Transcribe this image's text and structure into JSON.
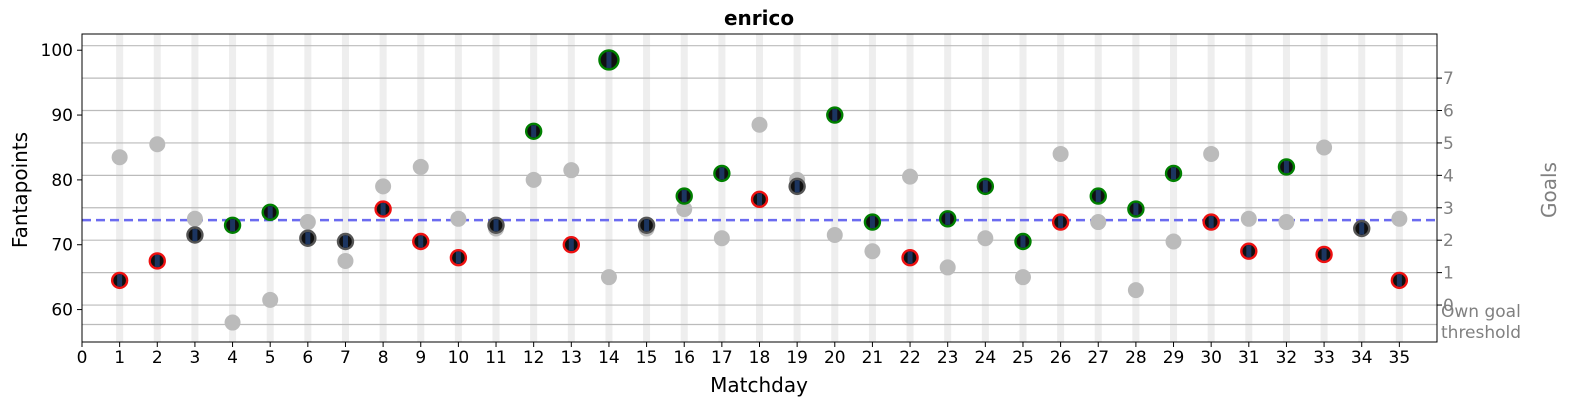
{
  "chart_data": {
    "type": "scatter",
    "title": "enrico",
    "xlabel": "Matchday",
    "ylabel": "Fantapoints",
    "y2label": "Goals",
    "xlim": [
      0,
      36
    ],
    "ylim": [
      55,
      102.5
    ],
    "xticks": [
      "0",
      "1",
      "2",
      "3",
      "4",
      "5",
      "6",
      "7",
      "8",
      "9",
      "10",
      "11",
      "12",
      "13",
      "14",
      "15",
      "16",
      "17",
      "18",
      "19",
      "20",
      "21",
      "22",
      "23",
      "24",
      "25",
      "26",
      "27",
      "28",
      "29",
      "30",
      "31",
      "32",
      "33",
      "34",
      "35"
    ],
    "yticks": [
      "60",
      "70",
      "80",
      "90",
      "100"
    ],
    "goal_lines": [
      {
        "value": 57.7,
        "label": ""
      },
      {
        "value": 60.7,
        "label": "0"
      },
      {
        "value": 65.7,
        "label": "1"
      },
      {
        "value": 70.7,
        "label": "2"
      },
      {
        "value": 75.7,
        "label": "3"
      },
      {
        "value": 80.7,
        "label": "4"
      },
      {
        "value": 85.7,
        "label": "5"
      },
      {
        "value": 90.7,
        "label": "6"
      },
      {
        "value": 95.7,
        "label": "7"
      },
      {
        "value": 100.7,
        "label": ""
      }
    ],
    "own_goal_label": [
      "Own goal",
      "threshold"
    ],
    "threshold": 73.8,
    "colors": {
      "green": "#008000",
      "red": "#ee1111",
      "gray": "#555555",
      "reference": "#bbbbbb",
      "threshold": "#6b6bf0",
      "goal_axis": "#808080",
      "stripe": "#eeeeee"
    },
    "series": [
      {
        "matchday": 1,
        "value": 64.5,
        "result": "red",
        "reference": 83.5
      },
      {
        "matchday": 2,
        "value": 67.5,
        "result": "red",
        "reference": 85.5
      },
      {
        "matchday": 3,
        "value": 71.5,
        "result": "gray",
        "reference": 74
      },
      {
        "matchday": 4,
        "value": 73,
        "result": "green",
        "reference": 58
      },
      {
        "matchday": 5,
        "value": 75,
        "result": "green",
        "reference": 61.5
      },
      {
        "matchday": 6,
        "value": 71,
        "result": "gray",
        "reference": 73.5
      },
      {
        "matchday": 7,
        "value": 70.5,
        "result": "gray",
        "reference": 67.5
      },
      {
        "matchday": 8,
        "value": 75.5,
        "result": "red",
        "reference": 79
      },
      {
        "matchday": 9,
        "value": 70.5,
        "result": "red",
        "reference": 82
      },
      {
        "matchday": 10,
        "value": 68,
        "result": "red",
        "reference": 74
      },
      {
        "matchday": 11,
        "value": 73,
        "result": "gray",
        "reference": 72.5
      },
      {
        "matchday": 12,
        "value": 87.5,
        "result": "green",
        "reference": 80
      },
      {
        "matchday": 13,
        "value": 70,
        "result": "red",
        "reference": 81.5
      },
      {
        "matchday": 14,
        "value": 98.5,
        "result": "green",
        "reference": 65
      },
      {
        "matchday": 15,
        "value": 73,
        "result": "gray",
        "reference": 72.5
      },
      {
        "matchday": 16,
        "value": 77.5,
        "result": "green",
        "reference": 75.5
      },
      {
        "matchday": 17,
        "value": 81,
        "result": "green",
        "reference": 71
      },
      {
        "matchday": 18,
        "value": 77,
        "result": "red",
        "reference": 88.5
      },
      {
        "matchday": 19,
        "value": 79,
        "result": "gray",
        "reference": 80
      },
      {
        "matchday": 20,
        "value": 90,
        "result": "green",
        "reference": 71.5
      },
      {
        "matchday": 21,
        "value": 73.5,
        "result": "green",
        "reference": 69
      },
      {
        "matchday": 22,
        "value": 68,
        "result": "red",
        "reference": 80.5
      },
      {
        "matchday": 23,
        "value": 74,
        "result": "green",
        "reference": 66.5
      },
      {
        "matchday": 24,
        "value": 79,
        "result": "green",
        "reference": 71
      },
      {
        "matchday": 25,
        "value": 70.5,
        "result": "green",
        "reference": 65
      },
      {
        "matchday": 26,
        "value": 73.5,
        "result": "red",
        "reference": 84
      },
      {
        "matchday": 27,
        "value": 77.5,
        "result": "green",
        "reference": 73.5
      },
      {
        "matchday": 28,
        "value": 75.5,
        "result": "green",
        "reference": 63
      },
      {
        "matchday": 29,
        "value": 81,
        "result": "green",
        "reference": 70.5
      },
      {
        "matchday": 30,
        "value": 73.5,
        "result": "red",
        "reference": 84
      },
      {
        "matchday": 31,
        "value": 69,
        "result": "red",
        "reference": 74
      },
      {
        "matchday": 32,
        "value": 82,
        "result": "green",
        "reference": 73.5
      },
      {
        "matchday": 33,
        "value": 68.5,
        "result": "red",
        "reference": 85
      },
      {
        "matchday": 34,
        "value": 72.5,
        "result": "gray",
        "reference": 72.5
      },
      {
        "matchday": 35,
        "value": 64.5,
        "result": "red",
        "reference": 74
      }
    ]
  }
}
